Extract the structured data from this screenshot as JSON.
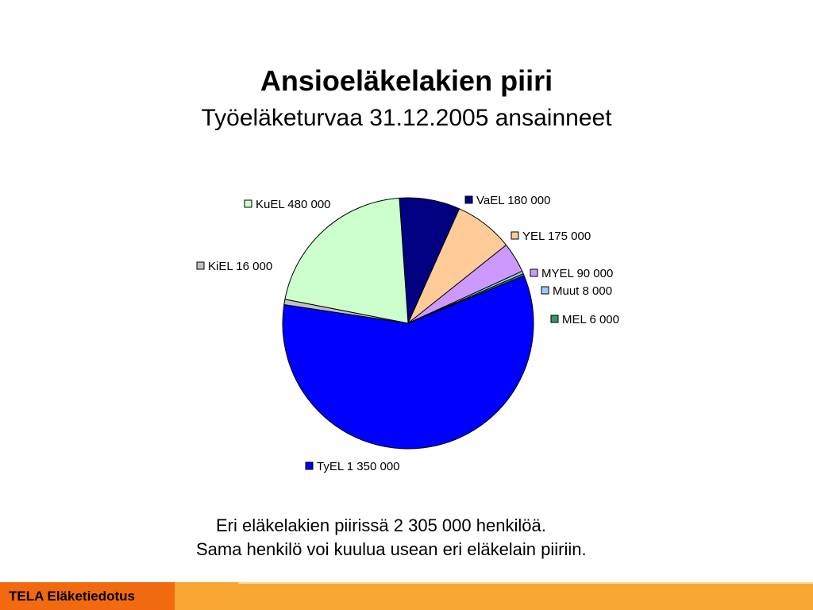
{
  "slide": {
    "title": "Ansioeläkelakien piiri",
    "subtitle": "Työeläketurvaa 31.12.2005 ansainneet",
    "caption_line1": "Eri eläkelakien piirissä 2 305 000 henkilöä.",
    "caption_line2": "Sama henkilö voi kuulua usean eri eläkelain piiriin.",
    "footer_label": "TELA Eläketiedotus"
  },
  "chart_data": {
    "type": "pie",
    "slices": [
      {
        "label": "VaEL",
        "value": 180000,
        "display": "VaEL 180 000",
        "color": "#000080"
      },
      {
        "label": "YEL",
        "value": 175000,
        "display": "YEL 175 000",
        "color": "#ffcc99"
      },
      {
        "label": "MYEL",
        "value": 90000,
        "display": "MYEL 90 000",
        "color": "#cc99ff"
      },
      {
        "label": "Muut",
        "value": 8000,
        "display": "Muut 8 000",
        "color": "#99ccff"
      },
      {
        "label": "MEL",
        "value": 6000,
        "display": "MEL 6 000",
        "color": "#339966"
      },
      {
        "label": "TyEL",
        "value": 1350000,
        "display": "TyEL 1 350 000",
        "color": "#0000ff"
      },
      {
        "label": "KiEL",
        "value": 16000,
        "display": "KiEL 16 000",
        "color": "#c0c0c0"
      },
      {
        "label": "KuEL",
        "value": 480000,
        "display": "KuEL 480 000",
        "color": "#ccffcc"
      }
    ],
    "legend_placement": "labels around pie"
  }
}
